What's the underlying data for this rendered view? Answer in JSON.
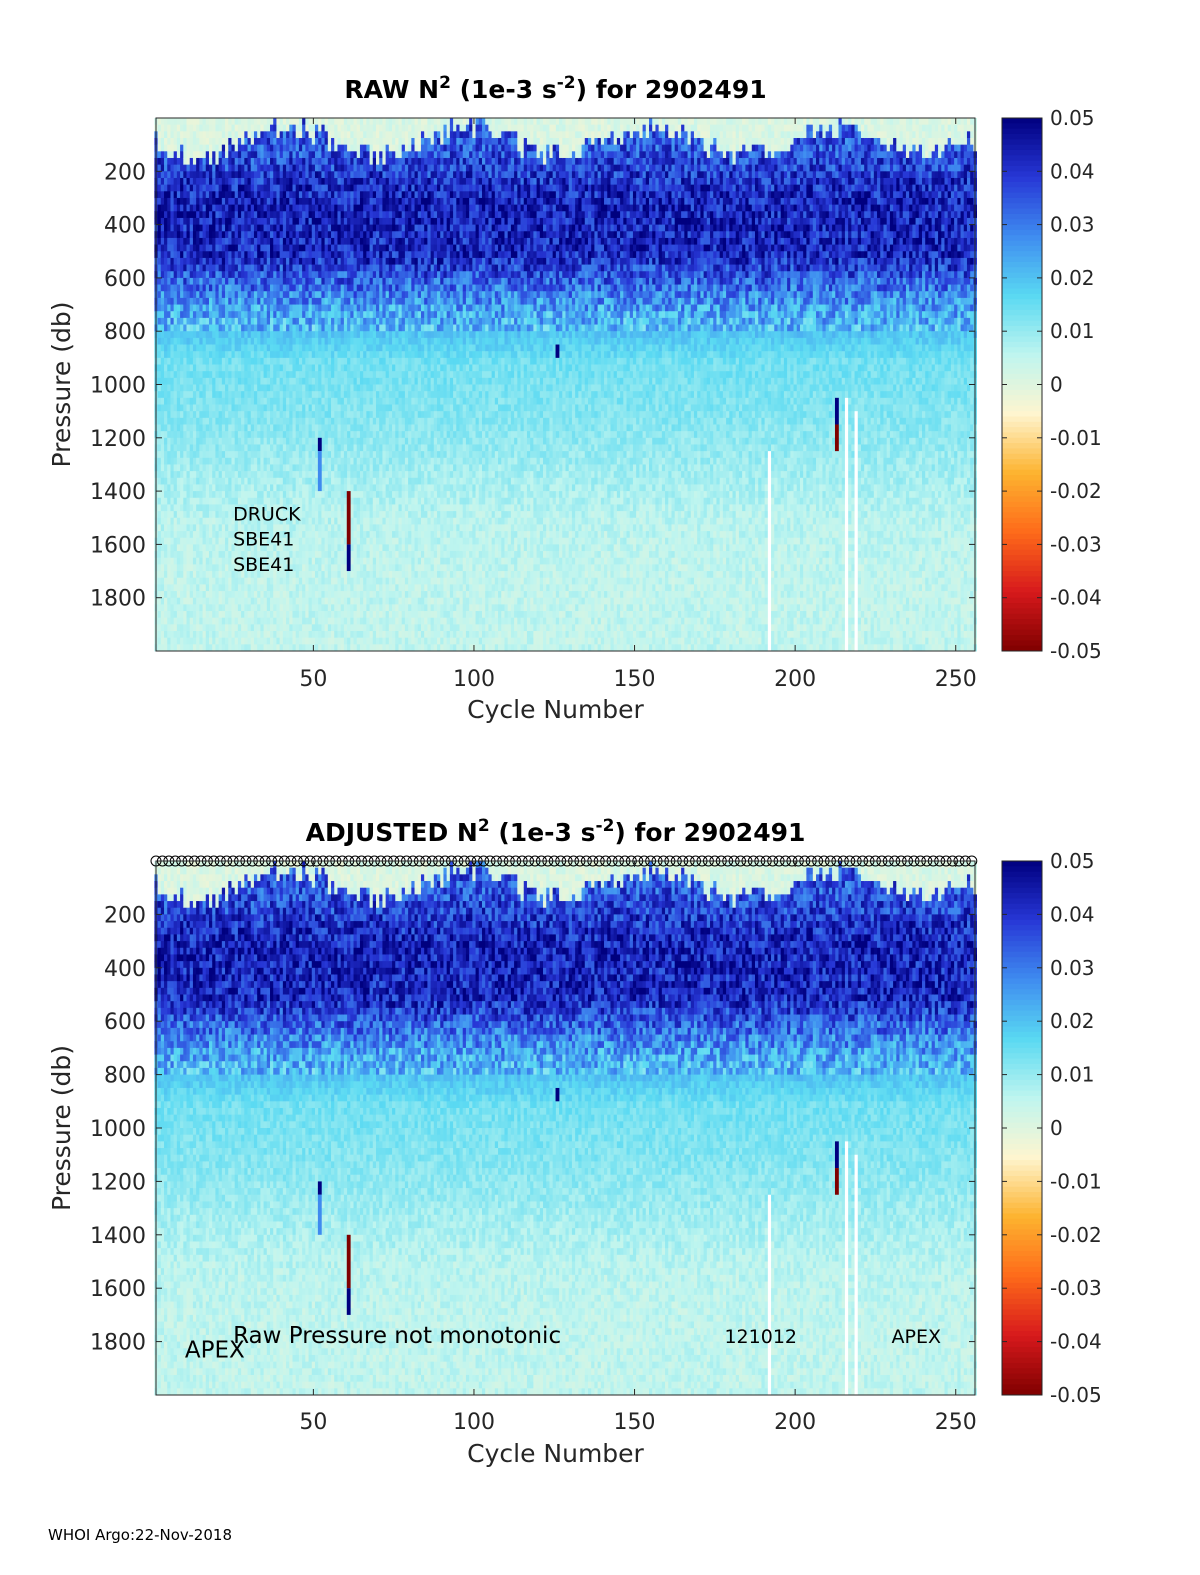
{
  "chart_data": [
    {
      "type": "heatmap",
      "title": {
        "pre": "RAW N",
        "sup1": "2",
        "mid": " (1e-3 s",
        "sup2": "-2",
        "post": ") for 2902491"
      },
      "xlabel": "Cycle Number",
      "ylabel": "Pressure (db)",
      "xlim": [
        1,
        256
      ],
      "ylim": [
        2000,
        0
      ],
      "xticks": [
        50,
        100,
        150,
        200,
        250
      ],
      "yticks": [
        200,
        400,
        600,
        800,
        1000,
        1200,
        1400,
        1600,
        1800
      ],
      "colorbar": {
        "min": -0.05,
        "max": 0.05,
        "ticks": [
          "0.05",
          "0.04",
          "0.03",
          "0.02",
          "0.01",
          "0",
          "-0.01",
          "-0.02",
          "-0.03",
          "-0.04",
          "-0.05"
        ]
      },
      "colormap": [
        "#7f0000",
        "#d7191c",
        "#fe6a1a",
        "#fdb32f",
        "#fef5cf",
        "#bff5ef",
        "#59d9f2",
        "#3f8cf0",
        "#2737d6",
        "#00007f"
      ],
      "profile_mean": [
        {
          "pressure": 100,
          "value": 0.035
        },
        {
          "pressure": 300,
          "value": 0.043
        },
        {
          "pressure": 500,
          "value": 0.042
        },
        {
          "pressure": 700,
          "value": 0.025
        },
        {
          "pressure": 900,
          "value": 0.014
        },
        {
          "pressure": 1100,
          "value": 0.012
        },
        {
          "pressure": 1300,
          "value": 0.009
        },
        {
          "pressure": 1500,
          "value": 0.006
        },
        {
          "pressure": 1700,
          "value": 0.005
        },
        {
          "pressure": 1900,
          "value": 0.005
        }
      ],
      "annotations": [
        {
          "text": "DRUCK",
          "x": 25,
          "y": 1510
        },
        {
          "text": "SBE41",
          "x": 25,
          "y": 1605
        },
        {
          "text": "SBE41",
          "x": 25,
          "y": 1700
        }
      ],
      "spikes": [
        {
          "cycle": 52,
          "p1": 1200,
          "p2": 1250,
          "value": 0.05
        },
        {
          "cycle": 52,
          "p1": 1250,
          "p2": 1400,
          "value": 0.028
        },
        {
          "cycle": 61,
          "p1": 1400,
          "p2": 1600,
          "value": -0.05
        },
        {
          "cycle": 61,
          "p1": 1600,
          "p2": 1700,
          "value": 0.05
        },
        {
          "cycle": 126,
          "p1": 850,
          "p2": 900,
          "value": 0.05
        },
        {
          "cycle": 213,
          "p1": 1050,
          "p2": 1150,
          "value": 0.05
        },
        {
          "cycle": 213,
          "p1": 1150,
          "p2": 1250,
          "value": -0.05
        }
      ],
      "gaps": [
        {
          "cycle": 192,
          "p1": 1250,
          "p2": 2000
        },
        {
          "cycle": 216,
          "p1": 1050,
          "p2": 2000
        },
        {
          "cycle": 219,
          "p1": 1100,
          "p2": 2000
        }
      ]
    },
    {
      "type": "heatmap",
      "title": {
        "pre": "ADJUSTED N",
        "sup1": "2",
        "mid": " (1e-3 s",
        "sup2": "-2",
        "post": ") for 2902491"
      },
      "xlabel": "Cycle Number",
      "ylabel": "Pressure (db)",
      "xlim": [
        1,
        256
      ],
      "ylim": [
        2000,
        0
      ],
      "xticks": [
        50,
        100,
        150,
        200,
        250
      ],
      "yticks": [
        200,
        400,
        600,
        800,
        1000,
        1200,
        1400,
        1600,
        1800
      ],
      "colorbar": {
        "min": -0.05,
        "max": 0.05,
        "ticks": [
          "0.05",
          "0.04",
          "0.03",
          "0.02",
          "0.01",
          "0",
          "-0.01",
          "-0.02",
          "-0.03",
          "-0.04",
          "-0.05"
        ]
      },
      "colormap": [
        "#7f0000",
        "#d7191c",
        "#fe6a1a",
        "#fdb32f",
        "#fef5cf",
        "#bff5ef",
        "#59d9f2",
        "#3f8cf0",
        "#2737d6",
        "#00007f"
      ],
      "profile_mean": [
        {
          "pressure": 100,
          "value": 0.035
        },
        {
          "pressure": 300,
          "value": 0.043
        },
        {
          "pressure": 500,
          "value": 0.042
        },
        {
          "pressure": 700,
          "value": 0.025
        },
        {
          "pressure": 900,
          "value": 0.014
        },
        {
          "pressure": 1100,
          "value": 0.012
        },
        {
          "pressure": 1300,
          "value": 0.009
        },
        {
          "pressure": 1500,
          "value": 0.006
        },
        {
          "pressure": 1700,
          "value": 0.005
        },
        {
          "pressure": 1900,
          "value": 0.005
        }
      ],
      "top_markers": "circle per cycle along top axis",
      "annotations": [
        {
          "text": "APEX",
          "x": 10,
          "y": 1860,
          "big": true
        },
        {
          "text": "Raw Pressure not monotonic",
          "x": 25,
          "y": 1805,
          "big": true
        },
        {
          "text": "121012",
          "x": 178,
          "y": 1805
        },
        {
          "text": "APEX",
          "x": 230,
          "y": 1805
        }
      ],
      "spikes": [
        {
          "cycle": 52,
          "p1": 1200,
          "p2": 1250,
          "value": 0.05
        },
        {
          "cycle": 52,
          "p1": 1250,
          "p2": 1400,
          "value": 0.028
        },
        {
          "cycle": 61,
          "p1": 1400,
          "p2": 1600,
          "value": -0.05
        },
        {
          "cycle": 61,
          "p1": 1600,
          "p2": 1700,
          "value": 0.05
        },
        {
          "cycle": 126,
          "p1": 850,
          "p2": 900,
          "value": 0.05
        },
        {
          "cycle": 213,
          "p1": 1050,
          "p2": 1150,
          "value": 0.05
        },
        {
          "cycle": 213,
          "p1": 1150,
          "p2": 1250,
          "value": -0.05
        }
      ],
      "gaps": [
        {
          "cycle": 192,
          "p1": 1250,
          "p2": 2000
        },
        {
          "cycle": 216,
          "p1": 1050,
          "p2": 2000
        },
        {
          "cycle": 219,
          "p1": 1100,
          "p2": 2000
        }
      ]
    }
  ],
  "footer": "WHOI Argo:22-Nov-2018"
}
